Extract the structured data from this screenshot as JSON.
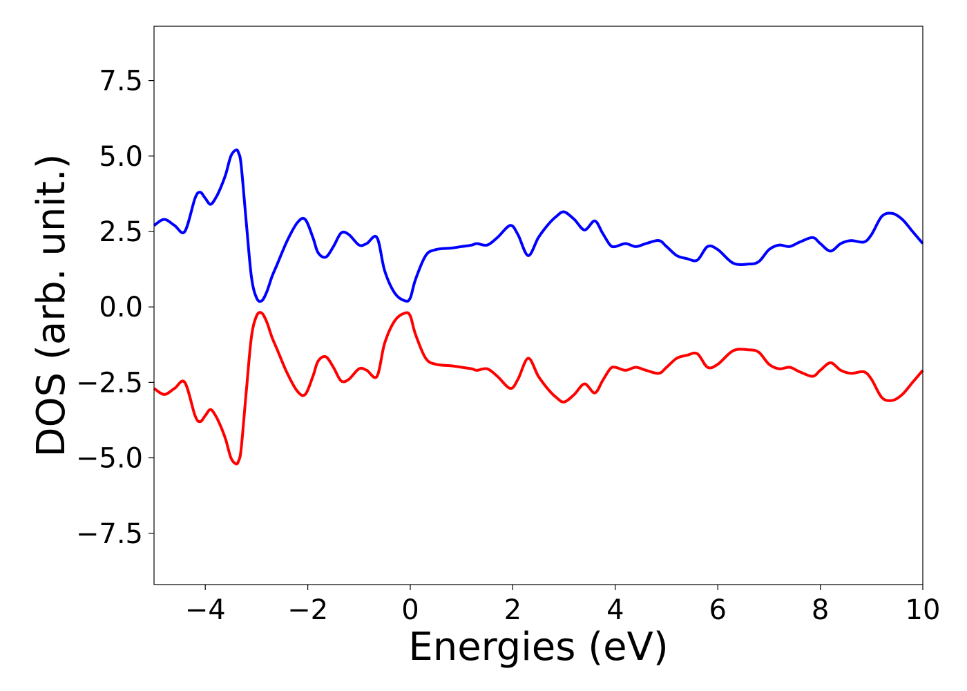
{
  "chart_data": {
    "type": "line",
    "xlabel": "Energies (eV)",
    "ylabel": "DOS (arb. unit.)",
    "xlim": [
      -5,
      10
    ],
    "ylim": [
      -9.2,
      9.3
    ],
    "x_ticks": [
      -4,
      -2,
      0,
      2,
      4,
      6,
      8,
      10
    ],
    "x_tick_labels": [
      "−4",
      "−2",
      "0",
      "2",
      "4",
      "6",
      "8",
      "10"
    ],
    "y_ticks": [
      -7.5,
      -5.0,
      -2.5,
      0.0,
      2.5,
      5.0,
      7.5
    ],
    "y_tick_labels": [
      "−7.5",
      "−5.0",
      "−2.5",
      "0.0",
      "2.5",
      "5.0",
      "7.5"
    ],
    "grid": false,
    "series": [
      {
        "color": "#0000ff",
        "x": [
          -5.0,
          -4.8,
          -4.6,
          -4.4,
          -4.2,
          -4.1,
          -4.0,
          -3.9,
          -3.8,
          -3.7,
          -3.6,
          -3.5,
          -3.4,
          -3.35,
          -3.3,
          -3.2,
          -3.1,
          -3.0,
          -2.9,
          -2.8,
          -2.7,
          -2.6,
          -2.4,
          -2.2,
          -2.05,
          -1.9,
          -1.8,
          -1.65,
          -1.5,
          -1.35,
          -1.2,
          -1.0,
          -0.85,
          -0.65,
          -0.5,
          -0.3,
          -0.1,
          0.0,
          0.1,
          0.3,
          0.5,
          0.8,
          1.0,
          1.2,
          1.3,
          1.5,
          1.7,
          1.95,
          2.1,
          2.3,
          2.5,
          2.7,
          2.85,
          3.0,
          3.2,
          3.4,
          3.6,
          3.75,
          3.9,
          4.0,
          4.2,
          4.4,
          4.6,
          4.85,
          5.0,
          5.2,
          5.4,
          5.6,
          5.8,
          6.0,
          6.3,
          6.6,
          6.8,
          7.0,
          7.2,
          7.4,
          7.6,
          7.85,
          8.0,
          8.2,
          8.4,
          8.6,
          8.85,
          9.0,
          9.2,
          9.4,
          9.6,
          9.8,
          10.0
        ],
        "y": [
          2.7,
          2.9,
          2.7,
          2.5,
          3.6,
          3.8,
          3.6,
          3.4,
          3.6,
          3.95,
          4.4,
          5.0,
          5.2,
          5.1,
          4.7,
          2.8,
          1.0,
          0.3,
          0.2,
          0.5,
          1.0,
          1.4,
          2.2,
          2.8,
          2.9,
          2.3,
          1.8,
          1.65,
          2.0,
          2.45,
          2.4,
          2.05,
          2.1,
          2.3,
          1.2,
          0.45,
          0.2,
          0.3,
          0.9,
          1.7,
          1.9,
          1.95,
          2.0,
          2.05,
          2.1,
          2.05,
          2.3,
          2.7,
          2.4,
          1.7,
          2.3,
          2.75,
          3.0,
          3.15,
          2.9,
          2.55,
          2.85,
          2.45,
          2.05,
          2.0,
          2.1,
          2.0,
          2.1,
          2.2,
          2.0,
          1.7,
          1.6,
          1.55,
          2.0,
          1.9,
          1.45,
          1.42,
          1.5,
          1.9,
          2.05,
          2.0,
          2.15,
          2.3,
          2.1,
          1.85,
          2.1,
          2.2,
          2.15,
          2.4,
          3.0,
          3.1,
          2.9,
          2.5,
          2.1
        ]
      },
      {
        "color": "#ff0000",
        "x": [
          -5.0,
          -4.8,
          -4.6,
          -4.4,
          -4.2,
          -4.1,
          -4.0,
          -3.9,
          -3.8,
          -3.7,
          -3.6,
          -3.5,
          -3.4,
          -3.35,
          -3.3,
          -3.2,
          -3.1,
          -3.0,
          -2.9,
          -2.8,
          -2.7,
          -2.6,
          -2.4,
          -2.2,
          -2.05,
          -1.9,
          -1.8,
          -1.65,
          -1.5,
          -1.35,
          -1.2,
          -1.0,
          -0.85,
          -0.65,
          -0.5,
          -0.3,
          -0.1,
          0.0,
          0.1,
          0.3,
          0.5,
          0.8,
          1.0,
          1.2,
          1.3,
          1.5,
          1.7,
          1.95,
          2.1,
          2.3,
          2.5,
          2.7,
          2.85,
          3.0,
          3.2,
          3.4,
          3.6,
          3.75,
          3.9,
          4.0,
          4.2,
          4.4,
          4.6,
          4.85,
          5.0,
          5.2,
          5.4,
          5.6,
          5.8,
          6.0,
          6.3,
          6.6,
          6.8,
          7.0,
          7.2,
          7.4,
          7.6,
          7.85,
          8.0,
          8.2,
          8.4,
          8.6,
          8.85,
          9.0,
          9.2,
          9.4,
          9.6,
          9.8,
          10.0
        ],
        "y": [
          -2.7,
          -2.9,
          -2.7,
          -2.5,
          -3.6,
          -3.8,
          -3.6,
          -3.4,
          -3.6,
          -3.95,
          -4.4,
          -5.0,
          -5.2,
          -5.1,
          -4.7,
          -2.8,
          -1.0,
          -0.3,
          -0.2,
          -0.5,
          -1.0,
          -1.4,
          -2.2,
          -2.8,
          -2.9,
          -2.3,
          -1.8,
          -1.65,
          -2.0,
          -2.45,
          -2.4,
          -2.05,
          -2.1,
          -2.3,
          -1.2,
          -0.45,
          -0.2,
          -0.3,
          -0.9,
          -1.7,
          -1.9,
          -1.95,
          -2.0,
          -2.05,
          -2.1,
          -2.05,
          -2.3,
          -2.7,
          -2.4,
          -1.7,
          -2.3,
          -2.75,
          -3.0,
          -3.15,
          -2.9,
          -2.55,
          -2.85,
          -2.45,
          -2.05,
          -2.0,
          -2.1,
          -2.0,
          -2.1,
          -2.2,
          -2.0,
          -1.7,
          -1.6,
          -1.55,
          -2.0,
          -1.9,
          -1.45,
          -1.42,
          -1.5,
          -1.9,
          -2.05,
          -2.0,
          -2.15,
          -2.3,
          -2.1,
          -1.85,
          -2.1,
          -2.2,
          -2.15,
          -2.4,
          -3.0,
          -3.1,
          -2.9,
          -2.5,
          -2.1
        ]
      }
    ]
  }
}
